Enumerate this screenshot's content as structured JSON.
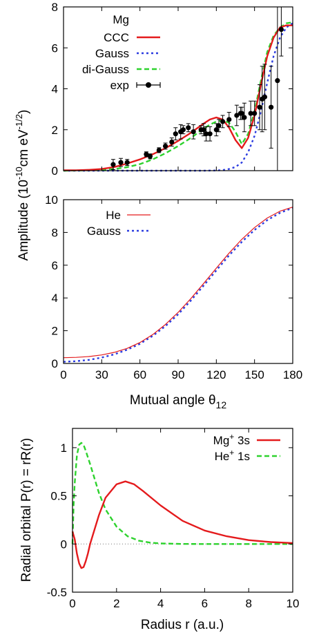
{
  "colors": {
    "ccc": "#e41a1c",
    "gauss": "#2b3ce0",
    "digauss": "#2dd22d",
    "he": "#e41a1c",
    "mg_plus": "#e41a1c",
    "he_plus": "#2dd22d",
    "exp": "#000000",
    "zero_line": "#777777"
  },
  "chart_data": [
    {
      "type": "line",
      "title": "",
      "xlabel": "",
      "ylabel": "",
      "xlim": [
        0,
        180
      ],
      "ylim": [
        0,
        8
      ],
      "yticks": [
        "0",
        "2",
        "4",
        "6",
        "8"
      ],
      "legend_title": "Mg",
      "legend_position": "top-left",
      "series": [
        {
          "name": "CCC",
          "style": "solid",
          "x": [
            0,
            10,
            20,
            30,
            40,
            50,
            60,
            70,
            80,
            90,
            100,
            110,
            115,
            120,
            125,
            130,
            135,
            140,
            145,
            150,
            155,
            160,
            165,
            170,
            175,
            180
          ],
          "y": [
            0.02,
            0.02,
            0.04,
            0.08,
            0.18,
            0.35,
            0.55,
            0.8,
            1.1,
            1.45,
            1.85,
            2.3,
            2.5,
            2.6,
            2.5,
            2.1,
            1.5,
            1.1,
            1.6,
            2.7,
            4.2,
            5.6,
            6.5,
            7.0,
            7.1,
            7.1
          ]
        },
        {
          "name": "Gauss",
          "style": "dotted",
          "x": [
            0,
            100,
            110,
            120,
            125,
            130,
            135,
            140,
            145,
            150,
            155,
            160,
            165,
            170,
            175,
            180
          ],
          "y": [
            0.0,
            0.0,
            0.0,
            0.01,
            0.03,
            0.08,
            0.18,
            0.4,
            0.9,
            1.7,
            2.9,
            4.3,
            5.6,
            6.5,
            7.0,
            7.2
          ]
        },
        {
          "name": "di-Gauss",
          "style": "dashed",
          "x": [
            0,
            10,
            20,
            30,
            40,
            50,
            60,
            70,
            80,
            90,
            100,
            110,
            115,
            120,
            125,
            130,
            135,
            140,
            145,
            150,
            155,
            160,
            165,
            170,
            175,
            180
          ],
          "y": [
            0.0,
            0.01,
            0.02,
            0.04,
            0.08,
            0.17,
            0.32,
            0.55,
            0.85,
            1.2,
            1.6,
            2.05,
            2.25,
            2.4,
            2.45,
            2.35,
            1.9,
            1.3,
            1.8,
            2.9,
            4.4,
            5.8,
            6.6,
            7.0,
            7.2,
            7.25
          ]
        },
        {
          "name": "exp",
          "style": "points",
          "x": [
            39,
            45,
            50,
            65,
            68,
            75,
            80,
            85,
            88,
            92,
            94,
            98,
            102,
            108,
            110,
            112,
            115,
            120,
            122,
            125,
            130,
            136,
            139,
            140,
            142,
            147,
            150,
            154,
            156,
            158,
            163,
            168,
            171
          ],
          "y": [
            0.3,
            0.4,
            0.4,
            0.8,
            0.7,
            1.0,
            1.2,
            1.4,
            1.8,
            1.9,
            2.0,
            2.1,
            1.9,
            2.0,
            2.0,
            1.8,
            1.8,
            2.0,
            2.2,
            2.4,
            2.5,
            2.7,
            2.8,
            2.8,
            2.6,
            2.8,
            2.8,
            3.1,
            3.5,
            3.6,
            3.1,
            4.4,
            6.9
          ],
          "yerr": [
            0.25,
            0.2,
            0.15,
            0.12,
            0.12,
            0.12,
            0.15,
            0.2,
            0.3,
            0.35,
            0.2,
            0.2,
            0.35,
            0.2,
            0.3,
            0.35,
            0.35,
            0.3,
            0.3,
            0.3,
            0.35,
            0.5,
            0.3,
            0.3,
            0.7,
            0.6,
            0.6,
            1.1,
            1.6,
            1.6,
            2.0,
            4.4,
            1.3
          ]
        }
      ]
    },
    {
      "type": "line",
      "title": "",
      "xlabel": "Mutual angle θ",
      "xlabel_sub": "12",
      "ylabel": "",
      "xlim": [
        0,
        180
      ],
      "ylim": [
        0,
        10
      ],
      "xticks": [
        "0",
        "30",
        "60",
        "90",
        "120",
        "150",
        "180"
      ],
      "yticks": [
        "0",
        "2",
        "4",
        "6",
        "8",
        "10"
      ],
      "legend_position": "top-left",
      "series": [
        {
          "name": "He",
          "style": "solid",
          "x": [
            0,
            10,
            20,
            30,
            40,
            50,
            60,
            70,
            80,
            90,
            100,
            110,
            120,
            130,
            140,
            150,
            160,
            170,
            180
          ],
          "y": [
            0.35,
            0.37,
            0.42,
            0.52,
            0.68,
            0.92,
            1.28,
            1.76,
            2.38,
            3.12,
            3.96,
            4.88,
            5.82,
            6.74,
            7.58,
            8.3,
            8.88,
            9.3,
            9.55
          ]
        },
        {
          "name": "Gauss",
          "style": "dotted",
          "x": [
            0,
            10,
            20,
            30,
            40,
            50,
            60,
            70,
            80,
            90,
            100,
            110,
            120,
            130,
            140,
            150,
            160,
            170,
            180
          ],
          "y": [
            0.1,
            0.14,
            0.22,
            0.36,
            0.56,
            0.84,
            1.2,
            1.68,
            2.28,
            3.0,
            3.84,
            4.75,
            5.68,
            6.6,
            7.42,
            8.15,
            8.75,
            9.2,
            9.5
          ]
        }
      ]
    },
    {
      "type": "line",
      "title": "",
      "xlabel": "Radius r (a.u.)",
      "ylabel": "Radial orbital P(r) = rR(r)",
      "xlim": [
        0,
        10
      ],
      "ylim": [
        -0.5,
        1.2
      ],
      "xticks": [
        "0",
        "2",
        "4",
        "6",
        "8",
        "10"
      ],
      "yticks": [
        "-0.5",
        "0",
        "0.5",
        "1"
      ],
      "legend_position": "top-right",
      "series": [
        {
          "name": "Mg",
          "sup": "+",
          "suffix": " 3s",
          "style": "solid",
          "x": [
            0,
            0.1,
            0.2,
            0.3,
            0.4,
            0.5,
            0.6,
            0.7,
            0.8,
            1.0,
            1.2,
            1.5,
            2.0,
            2.4,
            2.8,
            3.2,
            4.0,
            5.0,
            6.0,
            7.0,
            8.0,
            9.0,
            10.0
          ],
          "y": [
            0.13,
            0.05,
            -0.1,
            -0.2,
            -0.25,
            -0.24,
            -0.18,
            -0.1,
            0.0,
            0.15,
            0.3,
            0.48,
            0.62,
            0.65,
            0.62,
            0.55,
            0.4,
            0.24,
            0.14,
            0.08,
            0.04,
            0.02,
            0.01
          ]
        },
        {
          "name": "He",
          "sup": "+",
          "suffix": " 1s",
          "style": "dashed",
          "x": [
            0,
            0.05,
            0.1,
            0.2,
            0.3,
            0.4,
            0.5,
            0.6,
            0.8,
            1.0,
            1.2,
            1.5,
            2.0,
            2.5,
            3.0,
            3.5,
            4.0,
            5.0,
            6.0,
            8.0,
            10.0
          ],
          "y": [
            0.0,
            0.4,
            0.63,
            0.92,
            1.03,
            1.05,
            1.03,
            0.97,
            0.83,
            0.68,
            0.53,
            0.36,
            0.18,
            0.08,
            0.035,
            0.015,
            0.006,
            0.001,
            0.0,
            0.0,
            0.0
          ]
        }
      ]
    }
  ],
  "shared_ylabel": {
    "prefix": "Amplitude (10",
    "sup1": "-10",
    "middle": "cm eV",
    "sup2": "-1/2",
    "suffix": ")"
  }
}
